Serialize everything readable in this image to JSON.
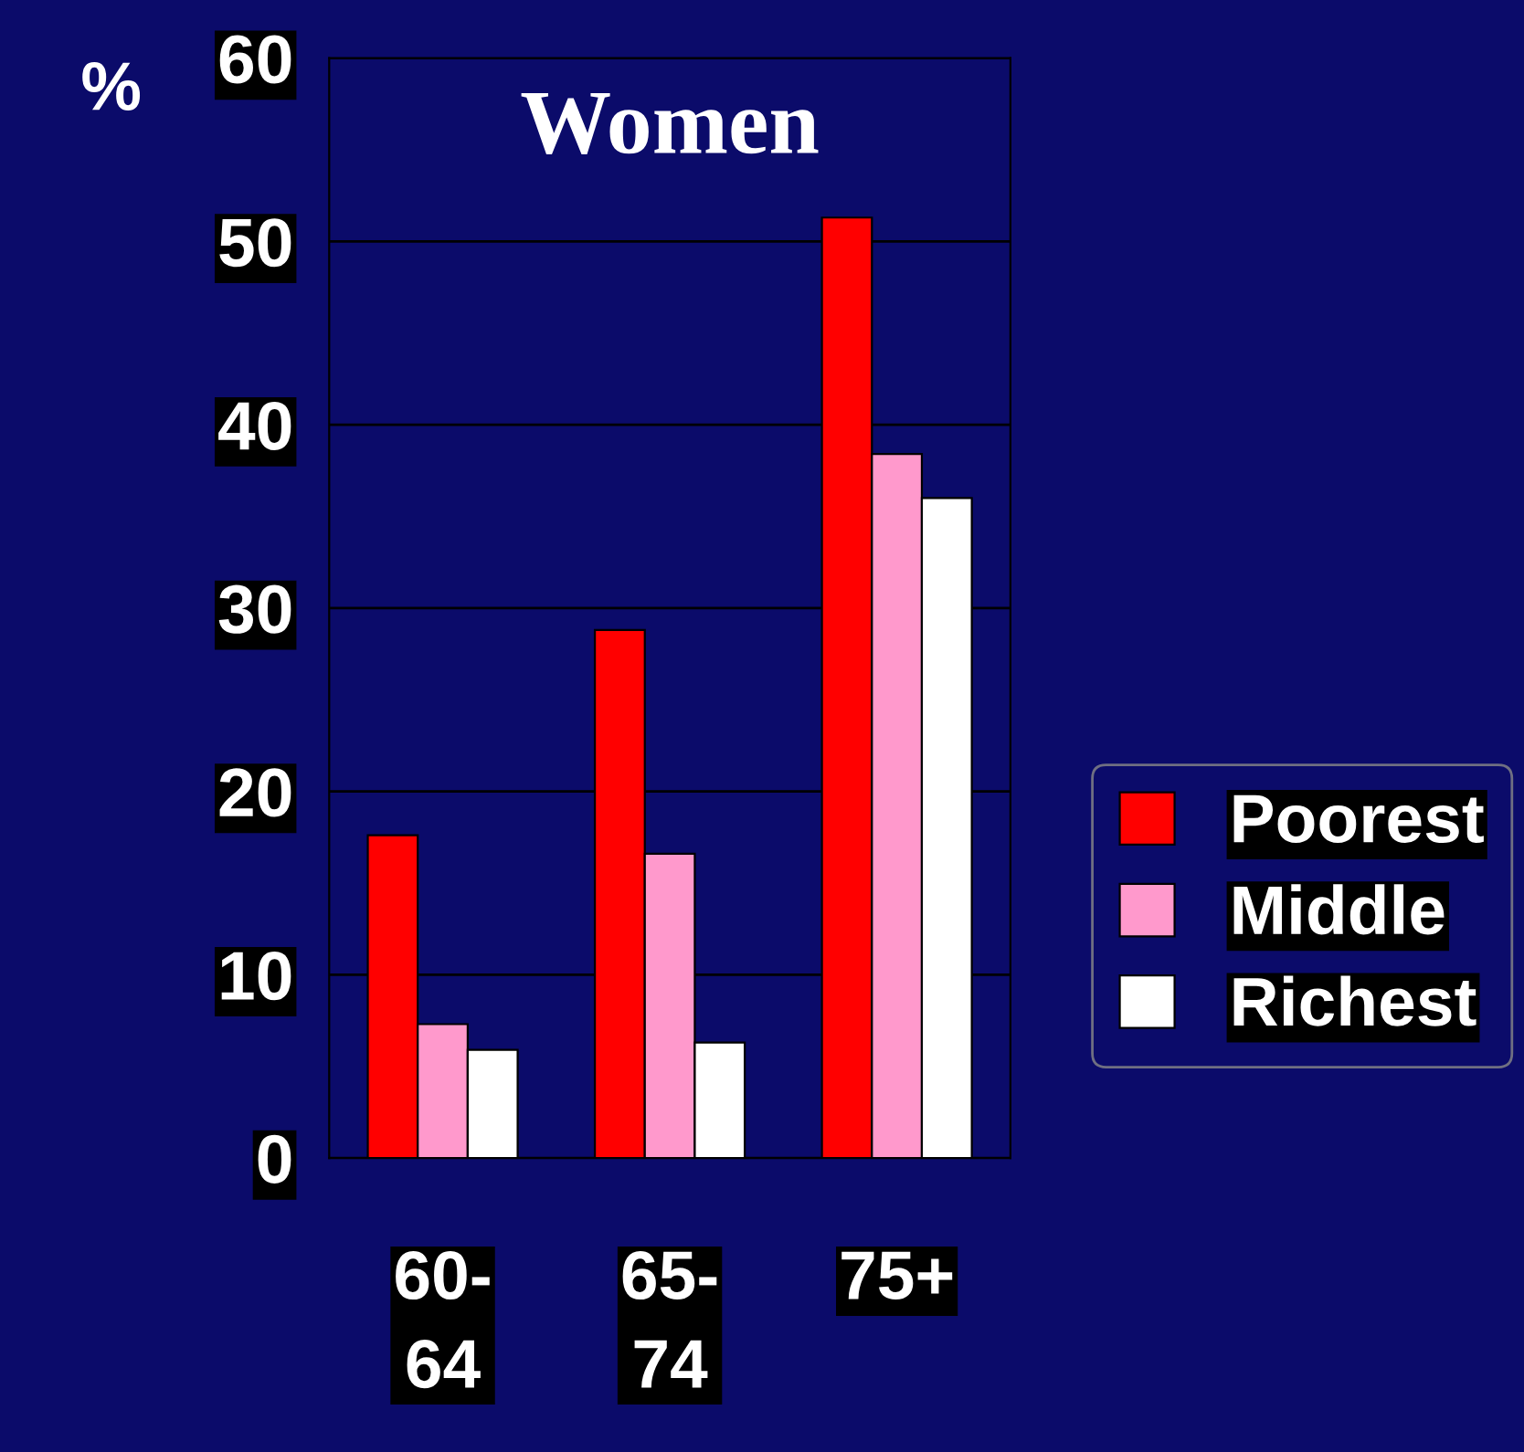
{
  "chart_data": {
    "type": "bar",
    "title": "Women",
    "ylabel": "%",
    "categories": [
      "60-\n64",
      "65-\n74",
      "75+"
    ],
    "series": [
      {
        "name": "Poorest",
        "color": "#ff0000",
        "values": [
          17.6,
          28.8,
          51.3
        ]
      },
      {
        "name": "Middle",
        "color": "#ff99cc",
        "values": [
          7.3,
          16.6,
          38.4
        ]
      },
      {
        "name": "Richest",
        "color": "#ffffff",
        "values": [
          5.9,
          6.3,
          36.0
        ]
      }
    ],
    "ylim": [
      0,
      60
    ],
    "yticks": [
      0,
      10,
      20,
      30,
      40,
      50,
      60
    ],
    "grid": "y",
    "legend": "right"
  }
}
